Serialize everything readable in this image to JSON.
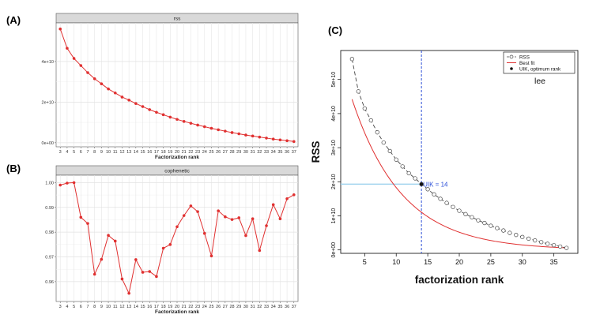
{
  "panels": {
    "a": {
      "label": "(A)"
    },
    "b": {
      "label": "(B)"
    },
    "c": {
      "label": "(C)"
    }
  },
  "chart_data": [
    {
      "id": "A",
      "type": "line",
      "title": "rss",
      "xlabel": "Factorization rank",
      "ylabel": "",
      "x": [
        3,
        4,
        5,
        6,
        7,
        8,
        9,
        10,
        11,
        12,
        13,
        14,
        15,
        16,
        17,
        18,
        19,
        20,
        21,
        22,
        23,
        24,
        25,
        26,
        27,
        28,
        29,
        30,
        31,
        32,
        33,
        34,
        35,
        36,
        37
      ],
      "values": [
        56000000000.0,
        46500000000.0,
        41500000000.0,
        38000000000.0,
        34500000000.0,
        31500000000.0,
        29000000000.0,
        26500000000.0,
        24500000000.0,
        22500000000.0,
        21000000000.0,
        19300000000.0,
        17800000000.0,
        16300000000.0,
        15000000000.0,
        13800000000.0,
        12600000000.0,
        11500000000.0,
        10500000000.0,
        9600000000.0,
        8700000000.0,
        7900000000.0,
        7100000000.0,
        6400000000.0,
        5700000000.0,
        5000000000.0,
        4400000000.0,
        3800000000.0,
        3300000000.0,
        2800000000.0,
        2300000000.0,
        1800000000.0,
        1400000000.0,
        1000000000.0,
        600000000.0
      ],
      "yticks": [
        0,
        20000000000.0,
        40000000000.0
      ],
      "ytick_labels": [
        "0e+00",
        "2e+10",
        "4e+10"
      ],
      "ylim": [
        -2000000000.0,
        59000000000.0
      ],
      "color": "#e03030",
      "grid": true
    },
    {
      "id": "B",
      "type": "line",
      "title": "cophenetic",
      "xlabel": "Factorization rank",
      "ylabel": "",
      "x": [
        3,
        4,
        5,
        6,
        7,
        8,
        9,
        10,
        11,
        12,
        13,
        14,
        15,
        16,
        17,
        18,
        19,
        20,
        21,
        22,
        23,
        24,
        25,
        26,
        27,
        28,
        29,
        30,
        31,
        32,
        33,
        34,
        35,
        36,
        37
      ],
      "values": [
        0.999,
        0.9998,
        1.0,
        0.986,
        0.9835,
        0.963,
        0.969,
        0.9787,
        0.9764,
        0.9611,
        0.9553,
        0.9689,
        0.9638,
        0.9641,
        0.9621,
        0.9735,
        0.975,
        0.9822,
        0.9867,
        0.9906,
        0.9883,
        0.9795,
        0.9704,
        0.9886,
        0.9862,
        0.9851,
        0.9858,
        0.9786,
        0.9854,
        0.9726,
        0.9826,
        0.9911,
        0.9854,
        0.9935,
        0.9951
      ],
      "yticks": [
        0.96,
        0.97,
        0.98,
        0.99,
        1.0
      ],
      "ytick_labels": [
        "0.96",
        "0.97",
        "0.98",
        "0.99",
        "1.00"
      ],
      "ylim": [
        0.952,
        1.003
      ],
      "color": "#e03030",
      "grid": true
    },
    {
      "id": "C",
      "type": "line",
      "title": "lee",
      "xlabel": "factorization rank",
      "ylabel": "RSS",
      "x": [
        3,
        4,
        5,
        6,
        7,
        8,
        9,
        10,
        11,
        12,
        13,
        14,
        15,
        16,
        17,
        18,
        19,
        20,
        21,
        22,
        23,
        24,
        25,
        26,
        27,
        28,
        29,
        30,
        31,
        32,
        33,
        34,
        35,
        36,
        37
      ],
      "series": [
        {
          "name": "RSS",
          "style": "open-circles-dashed",
          "color": "#444444",
          "values": [
            56000000000.0,
            46500000000.0,
            41500000000.0,
            38000000000.0,
            34500000000.0,
            31500000000.0,
            29000000000.0,
            26500000000.0,
            24500000000.0,
            22500000000.0,
            21000000000.0,
            19300000000.0,
            17800000000.0,
            16300000000.0,
            15000000000.0,
            13800000000.0,
            12600000000.0,
            11500000000.0,
            10500000000.0,
            9600000000.0,
            8700000000.0,
            7900000000.0,
            7100000000.0,
            6400000000.0,
            5700000000.0,
            5000000000.0,
            4400000000.0,
            3800000000.0,
            3300000000.0,
            2800000000.0,
            2300000000.0,
            1800000000.0,
            1400000000.0,
            1000000000.0,
            600000000.0
          ]
        },
        {
          "name": "Best fit",
          "style": "solid",
          "color": "#e03030",
          "fit": {
            "form": "a*exp(-b*x)",
            "a": 64500000000.0,
            "b": 0.126,
            "x_range": [
              3,
              37
            ]
          }
        },
        {
          "name": "UIK, optimum rank",
          "style": "point",
          "color": "#111111",
          "x": 14,
          "y": 19300000000.0
        }
      ],
      "xticks": [
        5,
        10,
        15,
        20,
        25,
        30,
        35
      ],
      "yticks": [
        0,
        10000000000.0,
        20000000000.0,
        30000000000.0,
        40000000000.0,
        50000000000.0
      ],
      "ytick_labels": [
        "0e+00",
        "1e+10",
        "2e+10",
        "3e+10",
        "4e+10",
        "5e+10"
      ],
      "xlim": [
        1.2,
        38.8
      ],
      "ylim": [
        -1000000000.0,
        58500000000.0
      ],
      "annotation": "UIK = 14",
      "vline_x": 14,
      "hline_y": 19300000000.0,
      "legend": "top-right",
      "grid": false
    }
  ]
}
